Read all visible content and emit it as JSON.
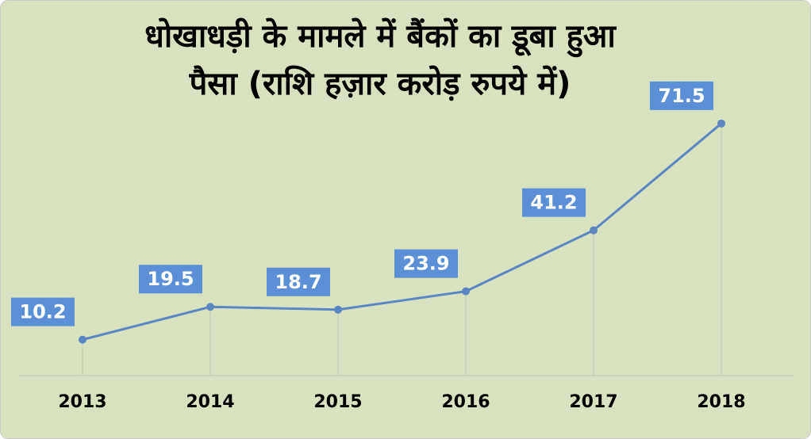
{
  "chart_data": {
    "type": "line",
    "title_lines": [
      "धोखाधड़ी के मामले में बैंकों का डूबा हुआ",
      "पैसा (राशि हज़ार करोड़ रुपये में)"
    ],
    "categories": [
      "2013",
      "2014",
      "2015",
      "2016",
      "2017",
      "2018"
    ],
    "series": [
      {
        "values": [
          10.2,
          19.5,
          18.7,
          23.9,
          41.2,
          71.5
        ]
      }
    ],
    "data_labels": [
      "10.2",
      "19.5",
      "18.7",
      "23.9",
      "41.2",
      "71.5"
    ],
    "ylim": [
      0,
      80
    ],
    "grid": "vertical drop lines",
    "legend": "none"
  },
  "colors": {
    "background": "#d9e2c0",
    "line": "#5b86c0",
    "label_box": "#5b8fd6",
    "label_text": "#ffffff",
    "drop_line": "#c5ccb6",
    "axis": "#c5ccb6"
  }
}
